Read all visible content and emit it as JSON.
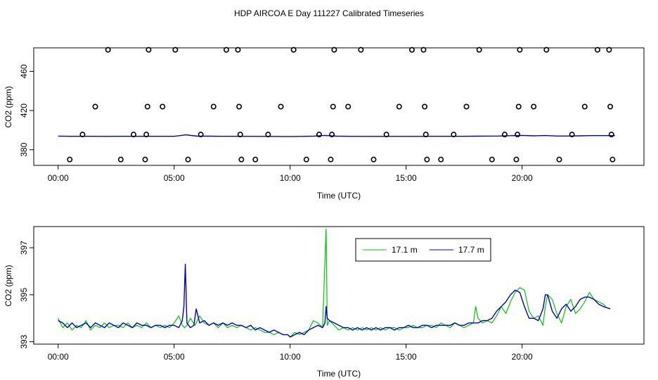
{
  "title": "HDP AIRCOA E  Day 111227  Calibrated Timeseries",
  "colors": {
    "green": "#00c800",
    "blue": "#0000cc",
    "black": "#000000"
  },
  "chart_data": [
    {
      "type": "scatter",
      "xlabel": "Time (UTC)",
      "ylabel": "CO2 (ppm)",
      "xlim": [
        0,
        24.2
      ],
      "ylim": [
        364,
        484
      ],
      "xticks": [
        {
          "v": 0,
          "label": "00:00"
        },
        {
          "v": 5,
          "label": "05:00"
        },
        {
          "v": 10,
          "label": "10:00"
        },
        {
          "v": 15,
          "label": "15:00"
        },
        {
          "v": 20,
          "label": "20:00"
        }
      ],
      "yticks": [
        {
          "v": 380,
          "label": "380"
        },
        {
          "v": 420,
          "label": "420"
        },
        {
          "v": 460,
          "label": "460"
        }
      ],
      "calibration_points": [
        [
          0.5,
          370
        ],
        [
          1.05,
          395.5
        ],
        [
          1.6,
          424
        ],
        [
          2.15,
          482
        ],
        [
          2.7,
          370
        ],
        [
          3.25,
          395.5
        ],
        [
          3.75,
          370
        ],
        [
          3.8,
          395.5
        ],
        [
          3.85,
          424
        ],
        [
          3.9,
          482
        ],
        [
          4.5,
          424
        ],
        [
          5.05,
          482
        ],
        [
          5.6,
          370
        ],
        [
          6.15,
          395.5
        ],
        [
          6.7,
          424
        ],
        [
          7.25,
          482
        ],
        [
          7.75,
          482
        ],
        [
          7.8,
          424
        ],
        [
          7.85,
          395.5
        ],
        [
          7.9,
          370
        ],
        [
          8.5,
          370
        ],
        [
          9.05,
          395.5
        ],
        [
          9.6,
          424
        ],
        [
          10.15,
          482
        ],
        [
          10.7,
          370
        ],
        [
          11.25,
          395.5
        ],
        [
          11.75,
          370
        ],
        [
          11.8,
          395.5
        ],
        [
          11.85,
          424
        ],
        [
          11.9,
          482
        ],
        [
          12.5,
          424
        ],
        [
          13.05,
          482
        ],
        [
          13.6,
          370
        ],
        [
          14.15,
          395.5
        ],
        [
          14.7,
          424
        ],
        [
          15.25,
          482
        ],
        [
          15.75,
          482
        ],
        [
          15.8,
          424
        ],
        [
          15.85,
          395.5
        ],
        [
          15.9,
          370
        ],
        [
          16.5,
          370
        ],
        [
          17.05,
          395.5
        ],
        [
          17.6,
          424
        ],
        [
          18.15,
          482
        ],
        [
          18.7,
          370
        ],
        [
          19.25,
          395.5
        ],
        [
          19.75,
          370
        ],
        [
          19.8,
          395.5
        ],
        [
          19.85,
          424
        ],
        [
          19.9,
          482
        ],
        [
          20.5,
          424
        ],
        [
          21.05,
          482
        ],
        [
          21.6,
          370
        ],
        [
          22.15,
          395.5
        ],
        [
          22.7,
          424
        ],
        [
          23.25,
          482
        ],
        [
          23.75,
          482
        ],
        [
          23.8,
          424
        ],
        [
          23.85,
          395.5
        ],
        [
          23.9,
          370
        ]
      ],
      "series": [
        {
          "color": "#0000cc",
          "x": [
            0,
            0.5,
            1,
            1.5,
            2,
            2.5,
            3,
            3.5,
            4,
            4.5,
            5,
            5.5,
            6,
            6.5,
            7,
            7.5,
            8,
            8.5,
            9,
            9.5,
            10,
            10.5,
            11,
            11.5,
            12,
            12.5,
            13,
            13.5,
            14,
            14.5,
            15,
            15.5,
            16,
            16.5,
            17,
            17.5,
            18,
            18.5,
            19,
            19.5,
            20,
            20.5,
            21,
            21.5,
            22,
            22.5,
            23,
            23.5,
            24
          ],
          "y": [
            393.9,
            393.7,
            393.7,
            393.7,
            393.6,
            393.7,
            393.7,
            393.7,
            393.7,
            393.7,
            393.7,
            395.2,
            393.8,
            393.8,
            393.7,
            393.7,
            393.7,
            393.6,
            393.6,
            393.5,
            393.4,
            393.6,
            393.8,
            394.6,
            393.8,
            393.7,
            393.6,
            393.6,
            393.6,
            393.6,
            393.6,
            393.6,
            393.7,
            393.7,
            393.7,
            393.7,
            393.8,
            393.9,
            394.0,
            394.3,
            394.6,
            394.2,
            394.5,
            394.0,
            394.0,
            394.2,
            394.4,
            394.4,
            394.4
          ]
        }
      ]
    },
    {
      "type": "line",
      "xlabel": "Time (UTC)",
      "ylabel": "CO2 (ppm)",
      "xlim": [
        0,
        24.2
      ],
      "ylim": [
        392.9,
        397.9
      ],
      "legend": "top-center",
      "xticks": [
        {
          "v": 0,
          "label": "00:00"
        },
        {
          "v": 5,
          "label": "05:00"
        },
        {
          "v": 10,
          "label": "10:00"
        },
        {
          "v": 15,
          "label": "15:00"
        },
        {
          "v": 20,
          "label": "20:00"
        }
      ],
      "yticks": [
        {
          "v": 393,
          "label": "393"
        },
        {
          "v": 395,
          "label": "395"
        },
        {
          "v": 397,
          "label": "397"
        }
      ],
      "series": [
        {
          "name": "17.1 m",
          "color": "#00c800",
          "x": [
            0.0,
            0.2,
            0.4,
            0.6,
            0.8,
            1.0,
            1.2,
            1.4,
            1.6,
            1.8,
            2.0,
            2.2,
            2.4,
            2.6,
            2.8,
            3.0,
            3.2,
            3.4,
            3.6,
            3.8,
            4.0,
            4.2,
            4.4,
            4.6,
            4.8,
            5.0,
            5.2,
            5.35,
            5.45,
            5.55,
            5.7,
            5.9,
            6.1,
            6.3,
            6.5,
            6.7,
            6.9,
            7.1,
            7.3,
            7.5,
            7.7,
            7.9,
            8.1,
            8.3,
            8.5,
            8.7,
            8.9,
            9.1,
            9.3,
            9.5,
            9.7,
            9.9,
            10.0,
            10.2,
            10.4,
            10.6,
            10.8,
            11.0,
            11.2,
            11.4,
            11.5,
            11.55,
            11.6,
            11.7,
            11.9,
            12.1,
            12.3,
            12.5,
            12.7,
            12.9,
            13.1,
            13.3,
            13.5,
            13.7,
            13.9,
            14.1,
            14.3,
            14.5,
            14.7,
            14.9,
            15.1,
            15.3,
            15.5,
            15.7,
            15.9,
            16.1,
            16.3,
            16.5,
            16.7,
            16.9,
            17.1,
            17.3,
            17.5,
            17.7,
            17.9,
            18.0,
            18.1,
            18.3,
            18.5,
            18.7,
            18.9,
            19.1,
            19.3,
            19.5,
            19.7,
            19.9,
            20.1,
            20.3,
            20.5,
            20.7,
            20.9,
            21.0,
            21.1,
            21.3,
            21.5,
            21.7,
            21.9,
            22.1,
            22.3,
            22.5,
            22.7,
            22.9,
            23.1,
            23.3,
            23.5,
            23.6
          ],
          "y": [
            394.0,
            393.6,
            393.8,
            393.5,
            393.7,
            393.6,
            393.9,
            393.5,
            393.7,
            393.6,
            393.8,
            393.6,
            393.7,
            393.7,
            393.6,
            393.8,
            393.6,
            393.7,
            393.6,
            393.8,
            393.6,
            393.7,
            393.6,
            393.7,
            393.6,
            393.8,
            394.1,
            393.7,
            393.6,
            393.7,
            394.0,
            393.7,
            394.1,
            393.8,
            393.7,
            393.8,
            393.6,
            393.8,
            393.6,
            393.7,
            393.6,
            393.7,
            393.6,
            393.5,
            393.6,
            393.5,
            393.4,
            393.4,
            393.3,
            393.4,
            393.3,
            393.3,
            393.2,
            393.4,
            393.3,
            393.4,
            393.5,
            393.9,
            393.8,
            393.6,
            396.4,
            397.8,
            393.7,
            393.9,
            393.7,
            393.5,
            393.6,
            393.5,
            393.6,
            393.5,
            393.6,
            393.5,
            393.6,
            393.5,
            393.6,
            393.5,
            393.6,
            393.6,
            393.5,
            393.6,
            393.6,
            393.7,
            393.6,
            393.6,
            393.7,
            393.7,
            393.6,
            393.8,
            393.7,
            393.6,
            393.8,
            393.7,
            393.6,
            393.7,
            393.8,
            394.5,
            394.0,
            393.8,
            393.9,
            393.8,
            394.1,
            394.5,
            394.2,
            394.7,
            395.1,
            395.3,
            395.2,
            394.3,
            394.0,
            394.1,
            393.7,
            394.5,
            395.0,
            394.8,
            394.2,
            393.8,
            394.5,
            394.8,
            394.2,
            394.4,
            394.7,
            395.1,
            394.8,
            394.7,
            394.6,
            394.5
          ]
        },
        {
          "name": "17.7 m",
          "color": "#0000cc",
          "x": [
            0.0,
            0.2,
            0.4,
            0.6,
            0.8,
            1.0,
            1.2,
            1.4,
            1.6,
            1.8,
            2.0,
            2.2,
            2.4,
            2.6,
            2.8,
            3.0,
            3.2,
            3.4,
            3.6,
            3.8,
            4.0,
            4.2,
            4.4,
            4.6,
            4.8,
            5.0,
            5.2,
            5.35,
            5.42,
            5.48,
            5.55,
            5.7,
            5.85,
            5.95,
            6.1,
            6.3,
            6.5,
            6.7,
            6.9,
            7.1,
            7.3,
            7.5,
            7.7,
            7.9,
            8.1,
            8.3,
            8.5,
            8.7,
            8.9,
            9.1,
            9.3,
            9.5,
            9.7,
            9.9,
            10.0,
            10.2,
            10.4,
            10.6,
            10.8,
            11.0,
            11.2,
            11.4,
            11.5,
            11.55,
            11.6,
            11.7,
            11.9,
            12.1,
            12.3,
            12.5,
            12.7,
            12.9,
            13.1,
            13.3,
            13.5,
            13.7,
            13.9,
            14.1,
            14.3,
            14.5,
            14.7,
            14.9,
            15.1,
            15.3,
            15.5,
            15.7,
            15.9,
            16.1,
            16.3,
            16.5,
            16.7,
            16.9,
            17.1,
            17.3,
            17.5,
            17.7,
            17.9,
            18.1,
            18.3,
            18.5,
            18.7,
            18.9,
            19.1,
            19.3,
            19.5,
            19.7,
            19.9,
            20.1,
            20.3,
            20.5,
            20.7,
            20.9,
            21.0,
            21.1,
            21.3,
            21.5,
            21.7,
            21.9,
            22.1,
            22.3,
            22.5,
            22.7,
            22.9,
            23.1,
            23.3,
            23.5,
            23.8
          ],
          "y": [
            393.9,
            393.8,
            393.6,
            393.8,
            393.6,
            393.7,
            393.8,
            393.6,
            393.8,
            393.7,
            393.6,
            393.8,
            393.7,
            393.6,
            393.8,
            393.7,
            393.6,
            393.8,
            393.7,
            393.7,
            393.6,
            393.7,
            393.7,
            393.6,
            393.7,
            393.7,
            393.6,
            393.9,
            394.5,
            396.3,
            393.8,
            393.6,
            393.7,
            394.4,
            393.8,
            393.9,
            393.7,
            393.8,
            393.7,
            393.8,
            393.7,
            393.8,
            393.7,
            393.7,
            393.6,
            393.7,
            393.5,
            393.6,
            393.5,
            393.4,
            393.5,
            393.4,
            393.3,
            393.3,
            393.2,
            393.3,
            393.4,
            393.3,
            393.5,
            393.6,
            393.7,
            393.6,
            393.8,
            394.5,
            394.0,
            393.9,
            393.8,
            393.7,
            393.6,
            393.6,
            393.5,
            393.6,
            393.5,
            393.6,
            393.5,
            393.6,
            393.5,
            393.6,
            393.6,
            393.5,
            393.6,
            393.6,
            393.7,
            393.6,
            393.6,
            393.7,
            393.7,
            393.6,
            393.7,
            393.7,
            393.7,
            393.7,
            393.8,
            393.7,
            393.7,
            393.8,
            393.8,
            393.8,
            393.9,
            393.9,
            394.0,
            394.3,
            394.5,
            394.7,
            395.0,
            395.2,
            395.1,
            394.5,
            394.0,
            394.0,
            393.9,
            394.4,
            395.0,
            395.0,
            394.3,
            394.0,
            394.4,
            394.6,
            394.3,
            394.5,
            394.8,
            394.9,
            394.9,
            394.8,
            394.6,
            394.5,
            394.4
          ]
        }
      ]
    }
  ]
}
